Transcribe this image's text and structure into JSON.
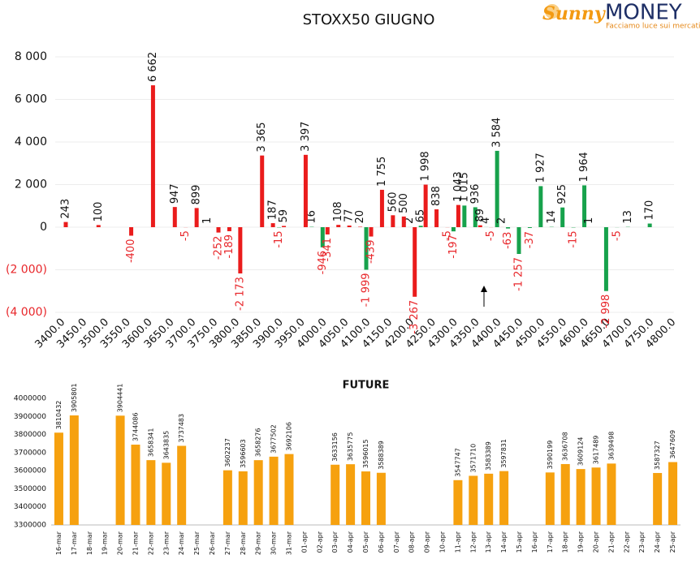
{
  "logo": {
    "brand": "Sunny",
    "name": "MONEY",
    "tagline": "Facciamo luce sui mercati"
  },
  "chart_data": [
    {
      "type": "bar",
      "title": "STOXX50 GIUGNO",
      "xlim": [
        3400,
        4800
      ],
      "xticks": [
        {
          "value": 3400,
          "label": "3400.0"
        },
        {
          "value": 3450,
          "label": "3450.0"
        },
        {
          "value": 3500,
          "label": "3500.0"
        },
        {
          "value": 3550,
          "label": "3550.0"
        },
        {
          "value": 3600,
          "label": "3600.0"
        },
        {
          "value": 3650,
          "label": "3650.0"
        },
        {
          "value": 3700,
          "label": "3700.0"
        },
        {
          "value": 3750,
          "label": "3750.0"
        },
        {
          "value": 3800,
          "label": "3800.0"
        },
        {
          "value": 3850,
          "label": "3850.0"
        },
        {
          "value": 3900,
          "label": "3900.0"
        },
        {
          "value": 3950,
          "label": "3950.0"
        },
        {
          "value": 4000,
          "label": "4000.0"
        },
        {
          "value": 4050,
          "label": "4050.0"
        },
        {
          "value": 4100,
          "label": "4100.0"
        },
        {
          "value": 4150,
          "label": "4150.0"
        },
        {
          "value": 4200,
          "label": "4200.0"
        },
        {
          "value": 4250,
          "label": "4250.0"
        },
        {
          "value": 4300,
          "label": "4300.0"
        },
        {
          "value": 4350,
          "label": "4350.0"
        },
        {
          "value": 4400,
          "label": "4400.0"
        },
        {
          "value": 4450,
          "label": "4450.0"
        },
        {
          "value": 4500,
          "label": "4500.0"
        },
        {
          "value": 4550,
          "label": "4550.0"
        },
        {
          "value": 4600,
          "label": "4600.0"
        },
        {
          "value": 4650,
          "label": "4650.0"
        },
        {
          "value": 4700,
          "label": "4700.0"
        },
        {
          "value": 4750,
          "label": "4750.0"
        },
        {
          "value": 4800,
          "label": "4800.0"
        }
      ],
      "ylim": [
        -4000,
        8000
      ],
      "yticks": [
        {
          "value": -4000,
          "label": "(4 000)"
        },
        {
          "value": -2000,
          "label": "(2 000)"
        },
        0,
        {
          "value": 2000,
          "label": "2 000"
        },
        {
          "value": 4000,
          "label": "4 000"
        },
        {
          "value": 6000,
          "label": "6 000"
        },
        {
          "value": 8000,
          "label": "8 000"
        }
      ],
      "grid": true,
      "negative_label_color": "#e8262a",
      "series": [
        {
          "color": "#17a24c",
          "x": [
            3900,
            3975,
            4000,
            4100,
            4200,
            4225,
            4300,
            4325,
            4350,
            4375,
            4400,
            4425,
            4450,
            4475,
            4500,
            4525,
            4550,
            4575,
            4600,
            4650,
            4675,
            4700,
            4750
          ],
          "values": [
            -15,
            16,
            -946,
            -1999,
            2,
            65,
            -197,
            1015,
            936,
            4,
            3584,
            -63,
            -1257,
            -37,
            1927,
            14,
            925,
            -15,
            1964,
            -2998,
            -5,
            13,
            170
          ],
          "value_labels": [
            "-15",
            "16",
            "-946",
            "-1 999",
            "2",
            "65",
            "-197",
            "1 015",
            "936",
            "4",
            "3 584",
            "-63",
            "-1 257",
            "-37",
            "1 927",
            "14",
            "925",
            "-15",
            "1 964",
            "-2 998",
            "-5",
            "13",
            "170"
          ]
        },
        {
          "color": "#ea1c1c",
          "x": [
            3400,
            3475,
            3550,
            3600,
            3650,
            3675,
            3700,
            3725,
            3750,
            3775,
            3800,
            3850,
            3875,
            3900,
            3950,
            4000,
            4025,
            4050,
            4075,
            4100,
            4125,
            4150,
            4175,
            4200,
            4225,
            4250,
            4275,
            4300,
            4350,
            4375,
            4400,
            4600
          ],
          "values": [
            243,
            100,
            -400,
            6662,
            947,
            -5,
            899,
            1,
            -252,
            -189,
            -2173,
            3365,
            187,
            59,
            3397,
            -341,
            108,
            77,
            20,
            -439,
            1755,
            560,
            500,
            -3267,
            1998,
            838,
            -5,
            1043,
            89,
            -5,
            2,
            1
          ],
          "value_labels": [
            "243",
            "100",
            "-400",
            "6 662",
            "947",
            "-5",
            "899",
            "1",
            "-252",
            "-189",
            "-2 173",
            "3 365",
            "187",
            "59",
            "3 397",
            "-341",
            "108",
            "77",
            "20",
            "-439",
            "1 755",
            "560",
            "500",
            "-3 267",
            "1 998",
            "838",
            "-5",
            "1 043",
            "89",
            "-5",
            "2",
            "1"
          ]
        }
      ]
    },
    {
      "type": "bar",
      "title": "FUTURE",
      "color": "#f6a10f",
      "categories": [
        "16-mar",
        "17-mar",
        "18-mar",
        "19-mar",
        "20-mar",
        "21-mar",
        "22-mar",
        "23-mar",
        "24-mar",
        "25-mar",
        "26-mar",
        "27-mar",
        "28-mar",
        "29-mar",
        "30-mar",
        "31-mar",
        "01-apr",
        "02-apr",
        "03-apr",
        "04-apr",
        "05-apr",
        "06-apr",
        "07-apr",
        "08-apr",
        "09-apr",
        "10-apr",
        "11-apr",
        "12-apr",
        "13-apr",
        "14-apr",
        "15-apr",
        "16-apr",
        "17-apr",
        "18-apr",
        "19-apr",
        "20-apr",
        "21-apr",
        "22-apr",
        "23-apr",
        "24-apr",
        "25-apr"
      ],
      "values": [
        3810432,
        3905801,
        null,
        null,
        3904441,
        3744086,
        3658341,
        3643835,
        3737483,
        null,
        null,
        3602237,
        3596603,
        3658276,
        3677502,
        3692106,
        null,
        null,
        3633156,
        3635775,
        3596015,
        3588389,
        null,
        null,
        null,
        null,
        3547747,
        3571710,
        3583389,
        3597831,
        null,
        null,
        3590199,
        3636708,
        3609124,
        3617489,
        3639498,
        null,
        null,
        3587327,
        3647609
      ],
      "ylim": [
        3300000,
        4000000
      ],
      "yticks": [
        3300000,
        3400000,
        3500000,
        3600000,
        3700000,
        3800000,
        3900000,
        4000000
      ],
      "grid": false
    }
  ]
}
